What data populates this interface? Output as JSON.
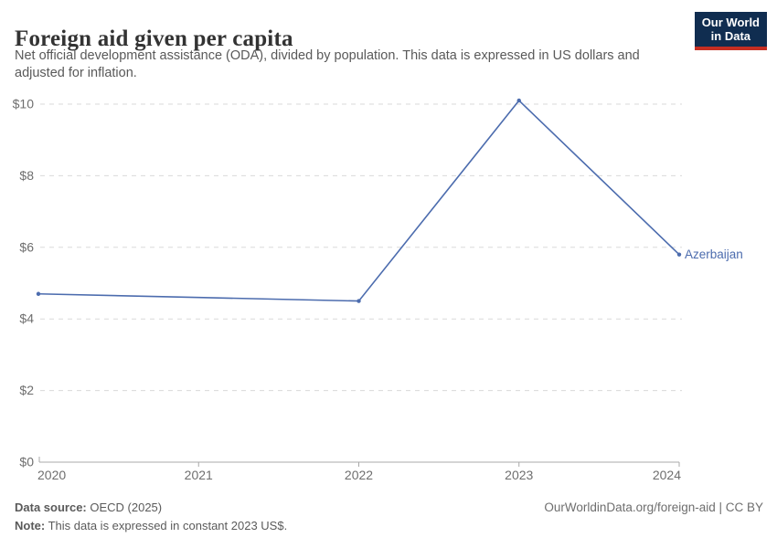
{
  "header": {
    "title": "Foreign aid given per capita",
    "subtitle": "Net official development assistance (ODA), divided by population. This data is expressed in US dollars and adjusted for inflation."
  },
  "logo": {
    "line1": "Our World",
    "line2": "in Data",
    "bg_color": "#102D50",
    "bar_color": "#C52E22"
  },
  "chart_data": {
    "type": "line",
    "title": "Foreign aid given per capita",
    "x": [
      2020,
      2021,
      2022,
      2023,
      2024
    ],
    "series": [
      {
        "name": "Azerbaijan",
        "color": "#4C6CAE",
        "values": [
          4.7,
          4.6,
          4.5,
          10.1,
          5.8
        ],
        "markers_at": [
          2020,
          2022,
          2023,
          2024
        ]
      }
    ],
    "xlabel": "",
    "ylabel": "",
    "ylim": [
      0,
      10
    ],
    "ytick_step": 2,
    "ytick_prefix": "$",
    "grid": "horizontal-dashed",
    "legend_position": "end-of-line",
    "colors": {
      "gridline": "#DADADA",
      "axis": "#A8A8A8",
      "tick_label": "#6E6E6E"
    }
  },
  "footer": {
    "source_label": "Data source:",
    "source_value": " OECD (2025)",
    "note_label": "Note:",
    "note_value": " This data is expressed in constant 2023 US$.",
    "credit": "OurWorldinData.org/foreign-aid | CC BY"
  }
}
